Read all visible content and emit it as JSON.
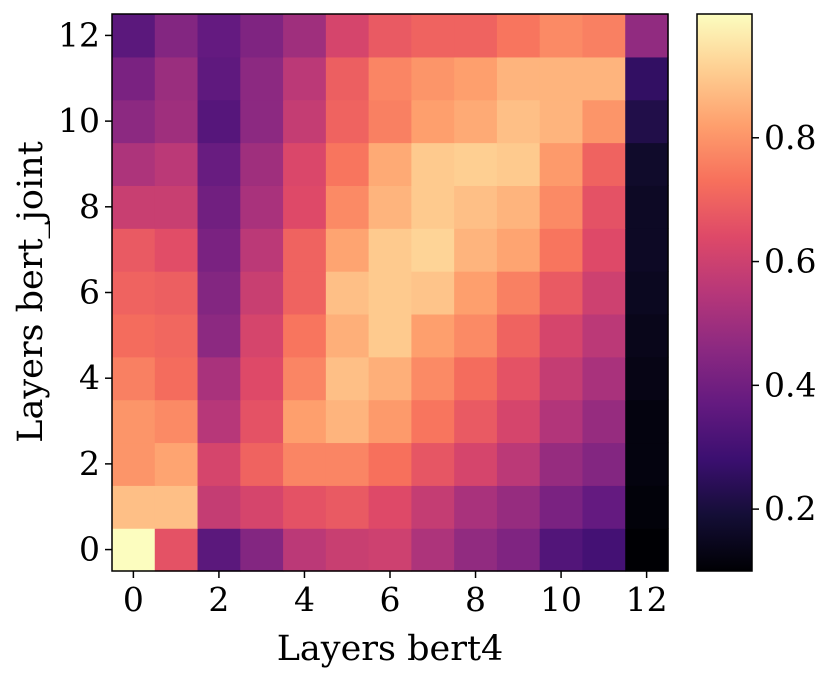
{
  "chart_data": {
    "type": "heatmap",
    "xlabel": "Layers bert4",
    "ylabel": "Layers bert_joint",
    "x_categories": [
      0,
      1,
      2,
      3,
      4,
      5,
      6,
      7,
      8,
      9,
      10,
      11,
      12
    ],
    "y_categories": [
      0,
      1,
      2,
      3,
      4,
      5,
      6,
      7,
      8,
      9,
      10,
      11,
      12
    ],
    "x_ticks": [
      "0",
      "2",
      "4",
      "6",
      "8",
      "10",
      "12"
    ],
    "y_ticks": [
      "0",
      "2",
      "4",
      "6",
      "8",
      "10",
      "12"
    ],
    "colormap": "magma",
    "vmin": 0.1,
    "vmax": 1.0,
    "colorbar_ticks": [
      "0.2",
      "0.4",
      "0.6",
      "0.8"
    ],
    "colorbar_tick_values": [
      0.2,
      0.4,
      0.6,
      0.8
    ],
    "values": [
      [
        1.0,
        0.66,
        0.35,
        0.44,
        0.56,
        0.59,
        0.6,
        0.53,
        0.47,
        0.43,
        0.33,
        0.3,
        0.1
      ],
      [
        0.88,
        0.88,
        0.58,
        0.62,
        0.66,
        0.68,
        0.64,
        0.58,
        0.52,
        0.48,
        0.42,
        0.37,
        0.11
      ],
      [
        0.8,
        0.83,
        0.62,
        0.7,
        0.77,
        0.77,
        0.73,
        0.67,
        0.62,
        0.56,
        0.48,
        0.44,
        0.12
      ],
      [
        0.8,
        0.78,
        0.55,
        0.66,
        0.82,
        0.86,
        0.81,
        0.74,
        0.68,
        0.62,
        0.54,
        0.48,
        0.12
      ],
      [
        0.76,
        0.72,
        0.52,
        0.64,
        0.77,
        0.88,
        0.85,
        0.78,
        0.72,
        0.66,
        0.58,
        0.52,
        0.13
      ],
      [
        0.72,
        0.71,
        0.46,
        0.62,
        0.74,
        0.85,
        0.9,
        0.82,
        0.78,
        0.7,
        0.62,
        0.56,
        0.14
      ],
      [
        0.7,
        0.69,
        0.44,
        0.59,
        0.7,
        0.88,
        0.9,
        0.89,
        0.82,
        0.76,
        0.68,
        0.6,
        0.15
      ],
      [
        0.68,
        0.65,
        0.42,
        0.56,
        0.7,
        0.83,
        0.9,
        0.92,
        0.86,
        0.83,
        0.74,
        0.64,
        0.16
      ],
      [
        0.59,
        0.59,
        0.4,
        0.52,
        0.64,
        0.78,
        0.86,
        0.9,
        0.88,
        0.86,
        0.78,
        0.66,
        0.16
      ],
      [
        0.53,
        0.56,
        0.38,
        0.5,
        0.63,
        0.74,
        0.84,
        0.9,
        0.91,
        0.9,
        0.81,
        0.7,
        0.17
      ],
      [
        0.46,
        0.5,
        0.34,
        0.46,
        0.58,
        0.7,
        0.76,
        0.82,
        0.84,
        0.88,
        0.86,
        0.8,
        0.22
      ],
      [
        0.42,
        0.49,
        0.36,
        0.46,
        0.56,
        0.69,
        0.77,
        0.8,
        0.82,
        0.86,
        0.86,
        0.86,
        0.26
      ],
      [
        0.35,
        0.44,
        0.37,
        0.43,
        0.5,
        0.62,
        0.68,
        0.7,
        0.7,
        0.74,
        0.78,
        0.76,
        0.47
      ]
    ]
  }
}
